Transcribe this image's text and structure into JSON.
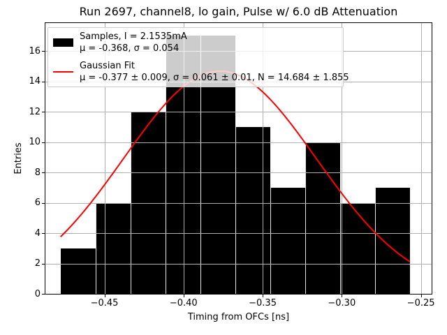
{
  "title": "Run 2697, channel8, lo gain, Pulse w/ 6.0 dB Attenuation",
  "chart_data": {
    "type": "bar",
    "title": "Run 2697, channel8, lo gain, Pulse w/ 6.0 dB Attenuation",
    "xlabel": "Timing from OFCs [ns]",
    "ylabel": "Entries",
    "xlim": [
      -0.4873,
      -0.2432
    ],
    "ylim": [
      0,
      17.85
    ],
    "grid": true,
    "bins": {
      "start": -0.4777,
      "bin_width": 0.02207,
      "counts": [
        3,
        6,
        12,
        17,
        17,
        11,
        7,
        10,
        6,
        7
      ]
    },
    "x_ticks": [
      {
        "value": -0.45,
        "label": "−0.45"
      },
      {
        "value": -0.4,
        "label": "−0.40"
      },
      {
        "value": -0.35,
        "label": "−0.35"
      },
      {
        "value": -0.3,
        "label": "−0.30"
      },
      {
        "value": -0.25,
        "label": "−0.25"
      }
    ],
    "y_ticks": [
      {
        "value": 0,
        "label": "0"
      },
      {
        "value": 2,
        "label": "2"
      },
      {
        "value": 4,
        "label": "4"
      },
      {
        "value": 6,
        "label": "6"
      },
      {
        "value": 8,
        "label": "8"
      },
      {
        "value": 10,
        "label": "10"
      },
      {
        "value": 12,
        "label": "12"
      },
      {
        "value": 14,
        "label": "14"
      },
      {
        "value": 16,
        "label": "16"
      }
    ],
    "sample_stats": {
      "current": "2.1535mA",
      "mu": -0.368,
      "sigma": 0.054
    },
    "fit": {
      "type": "gaussian",
      "mu": -0.377,
      "mu_err": 0.009,
      "sigma": 0.061,
      "sigma_err": 0.01,
      "amplitude": 14.684,
      "amplitude_err": 1.855,
      "x_range": [
        -0.4777,
        -0.257
      ]
    },
    "colors": {
      "bar": "#000000",
      "fit": "#ff0000",
      "grid": "#b0b0b0"
    },
    "legend": {
      "position": "upper left",
      "entries": [
        {
          "swatch": "black-patch",
          "line1": "Samples, I = 2.1535mA",
          "line2": "μ = -0.368, σ = 0.054"
        },
        {
          "swatch": "red-line",
          "line1": "Gaussian Fit",
          "line2": "μ = -0.377 ± 0.009, σ = 0.061 ± 0.01, N = 14.684 ± 1.855"
        }
      ]
    }
  }
}
